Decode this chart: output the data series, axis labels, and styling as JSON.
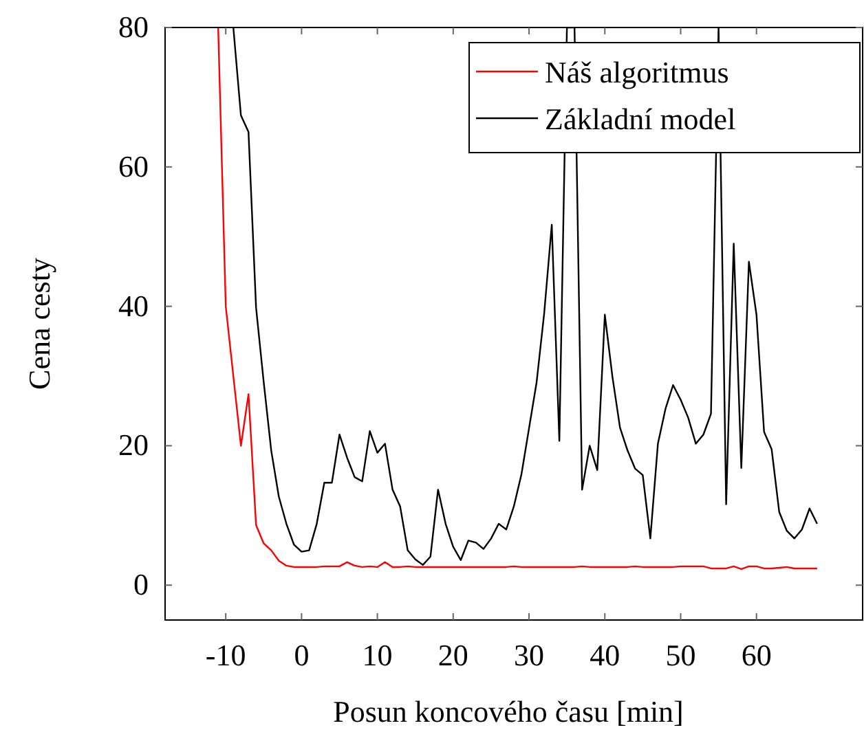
{
  "chart_data": {
    "type": "line",
    "xlabel": "Posun koncového času [min]",
    "ylabel": "Cena cesty",
    "xlim": [
      -18,
      74
    ],
    "ylim": [
      -5,
      80
    ],
    "xticks": [
      -10,
      0,
      10,
      20,
      30,
      40,
      50,
      60
    ],
    "yticks": [
      0,
      20,
      40,
      60,
      80
    ],
    "grid": false,
    "legend": "top right",
    "marker": "none",
    "line_style": "solid",
    "series": [
      {
        "name": "Náš algoritmus",
        "color": "#ff0000",
        "x": [
          -11,
          -10,
          -9,
          -8,
          -7,
          -6,
          -5,
          -4,
          -3,
          -2,
          -1,
          0,
          1,
          2,
          3,
          4,
          5,
          6,
          7,
          8,
          9,
          10,
          11,
          12,
          13,
          14,
          15,
          16,
          17,
          18,
          19,
          20,
          21,
          22,
          23,
          24,
          25,
          26,
          27,
          28,
          29,
          30,
          31,
          32,
          33,
          34,
          35,
          36,
          37,
          38,
          39,
          40,
          41,
          42,
          43,
          44,
          45,
          46,
          47,
          48,
          49,
          50,
          51,
          52,
          53,
          54,
          55,
          56,
          57,
          58,
          59,
          60,
          61,
          62,
          63,
          64,
          65,
          66,
          67,
          68
        ],
        "values": [
          80,
          40,
          30,
          20,
          27.4,
          8.6,
          6,
          5,
          3.5,
          2.8,
          2.6,
          2.6,
          2.6,
          2.6,
          2.7,
          2.7,
          2.7,
          3.3,
          2.8,
          2.6,
          2.7,
          2.6,
          3.3,
          2.6,
          2.6,
          2.7,
          2.6,
          2.6,
          2.6,
          2.6,
          2.6,
          2.6,
          2.6,
          2.6,
          2.6,
          2.6,
          2.6,
          2.6,
          2.6,
          2.7,
          2.6,
          2.6,
          2.6,
          2.6,
          2.6,
          2.6,
          2.6,
          2.6,
          2.7,
          2.6,
          2.6,
          2.6,
          2.6,
          2.6,
          2.6,
          2.7,
          2.6,
          2.6,
          2.6,
          2.6,
          2.6,
          2.7,
          2.7,
          2.7,
          2.7,
          2.4,
          2.4,
          2.4,
          2.7,
          2.3,
          2.7,
          2.7,
          2.4,
          2.4,
          2.5,
          2.6,
          2.4,
          2.4,
          2.4,
          2.4
        ]
      },
      {
        "name": "Základní model",
        "color": "#000000",
        "x": [
          -9,
          -8,
          -7,
          -6,
          -5,
          -4,
          -3,
          -2,
          -1,
          0,
          1,
          2,
          3,
          4,
          5,
          6,
          7,
          8,
          9,
          10,
          11,
          12,
          13,
          14,
          15,
          16,
          17,
          18,
          19,
          20,
          21,
          22,
          23,
          24,
          25,
          26,
          27,
          28,
          29,
          30,
          31,
          32,
          33,
          34,
          35,
          36,
          37,
          38,
          39,
          40,
          41,
          42,
          43,
          44,
          45,
          46,
          47,
          48,
          49,
          50,
          51,
          52,
          53,
          54,
          55,
          56,
          57,
          58,
          59,
          60,
          61,
          62,
          63,
          64,
          65,
          66,
          67,
          68
        ],
        "values": [
          80,
          67.4,
          65,
          39.8,
          29.2,
          19.3,
          12.7,
          8.8,
          5.8,
          4.8,
          5,
          8.8,
          14.7,
          14.7,
          21.6,
          18.3,
          15.5,
          14.9,
          22.1,
          19,
          20.3,
          13.7,
          11.3,
          5,
          3.7,
          2.9,
          4.1,
          13.7,
          8.8,
          5.5,
          3.6,
          6.4,
          6.1,
          5.2,
          6.7,
          8.8,
          8,
          11.3,
          15.9,
          22.5,
          29.1,
          39,
          51.7,
          20.7,
          80,
          80,
          13.7,
          20,
          16.5,
          38.8,
          29.9,
          22.6,
          19.3,
          16.7,
          15.8,
          6.7,
          20.3,
          25.3,
          28.7,
          26.6,
          24,
          20.3,
          21.6,
          24.6,
          80,
          11.6,
          49,
          16.8,
          46.4,
          38.8,
          22,
          19.5,
          10.5,
          7.8,
          6.7,
          8,
          11,
          8.8
        ]
      }
    ]
  }
}
